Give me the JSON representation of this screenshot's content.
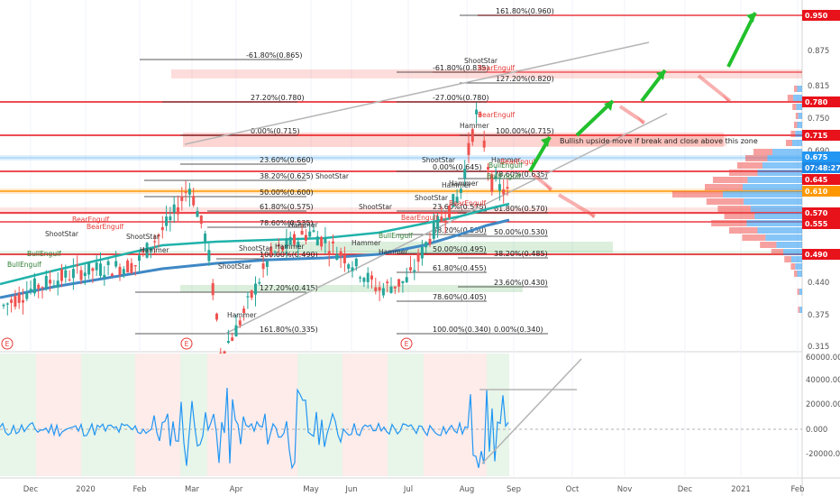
{
  "chart_data": [
    {
      "type": "candlestick",
      "price_ticks": [
        "0.875",
        "0.815",
        "0.750",
        "0.690",
        "0.440",
        "0.375",
        "0.315"
      ],
      "price_badges": [
        {
          "label": "0.950",
          "price": 0.95,
          "color": "#e8121b"
        },
        {
          "label": "0.780",
          "price": 0.78,
          "color": "#e8121b"
        },
        {
          "label": "0.715",
          "price": 0.715,
          "color": "#e8121b"
        },
        {
          "label": "0.675",
          "price": 0.675,
          "color": "#2196f3"
        },
        {
          "label": "07:48:27",
          "price": 0.66,
          "color": "#1e88e5"
        },
        {
          "label": "0.645",
          "price": 0.645,
          "color": "#e8121b"
        },
        {
          "label": "0.610",
          "price": 0.61,
          "color": "#ff9800"
        },
        {
          "label": "0.570",
          "price": 0.57,
          "color": "#e8121b"
        },
        {
          "label": "0.555",
          "price": 0.555,
          "color": "#e8121b"
        },
        {
          "label": "0.490",
          "price": 0.49,
          "color": "#e8121b"
        }
      ],
      "date_labels": [
        "Dec",
        "2020",
        "Feb",
        "Mar",
        "Apr",
        "May",
        "Jun",
        "Jul",
        "Aug",
        "Sep",
        "Oct",
        "Nov",
        "Dec",
        "2021",
        "Feb"
      ],
      "fib_levels_a": [
        "-61.80%(0.865)",
        "27.20%(0.780)",
        "0.00%(0.715)",
        "23.60%(0.660)",
        "38.20%(0.625)",
        "50.00%(0.600)",
        "61.80%(0.575)",
        "78.60%(0.535)",
        "100.00%(0.490)",
        "127.20%(0.415)",
        "161.80%(0.335)"
      ],
      "fib_levels_b": [
        "161.80%(0.960)",
        "-61.80%(0.835)",
        "127.20%(0.820)",
        "-27.00%(0.780)",
        "100.00%(0.715)",
        "0.00%(0.645)",
        "78.60%(0.635)",
        "23.60%(0.575)",
        "61.80%(0.570)",
        "38.20%(0.530)",
        "50.00%(0.530)",
        "50.00%(0.495)",
        "38.20%(0.485)",
        "61.80%(0.455)",
        "23.60%(0.430)",
        "78.60%(0.405)",
        "100.00%(0.340)",
        "0.00%(0.340)"
      ],
      "patterns": [
        "BullEngulf",
        "ShootStar",
        "BearEngulf",
        "BullEngulf",
        "ShootStar",
        "BearEngulf",
        "Hammer",
        "ShootStar",
        "Hammer",
        "ShootStar",
        "Hammer",
        "ShootStar",
        "Hammer",
        "BearEngulf",
        "BullEngulf",
        "Hammer",
        "ShootStar",
        "Hammer",
        "BearEngulf",
        "ShootStar",
        "BearEngulf",
        "Hammer",
        "ShootStar",
        "Hammer",
        "BearEngulf",
        "BullEngulf",
        "Hammer",
        "BullEngulf",
        "ShootStar",
        "BearEngulf",
        "Hammer"
      ],
      "annotation": "Bullish upside move if break and close above this zone",
      "earnings_markers": [
        "E",
        "E",
        "E"
      ]
    },
    {
      "type": "line",
      "name": "oscillator",
      "y_ticks": [
        "60000.000",
        "40000.000",
        "20000.000",
        "0.000",
        "-20000.000"
      ]
    }
  ]
}
